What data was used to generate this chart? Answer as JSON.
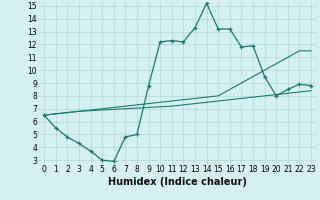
{
  "xlabel": "Humidex (Indice chaleur)",
  "x_values": [
    0,
    1,
    2,
    3,
    4,
    5,
    6,
    7,
    8,
    9,
    10,
    11,
    12,
    13,
    14,
    15,
    16,
    17,
    18,
    19,
    20,
    21,
    22,
    23
  ],
  "line1": [
    6.5,
    5.5,
    4.8,
    4.3,
    3.7,
    3.0,
    2.9,
    4.8,
    5.0,
    8.8,
    12.2,
    12.3,
    12.2,
    13.3,
    15.2,
    13.2,
    13.2,
    11.8,
    11.9,
    9.5,
    8.0,
    8.5,
    8.9,
    8.8
  ],
  "line2": [
    6.5,
    6.6,
    6.7,
    6.8,
    6.85,
    6.9,
    6.95,
    7.0,
    7.05,
    7.1,
    7.15,
    7.2,
    7.3,
    7.4,
    7.5,
    7.6,
    7.7,
    7.8,
    7.9,
    8.0,
    8.1,
    8.2,
    8.3,
    8.4
  ],
  "line3": [
    6.5,
    6.6,
    6.7,
    6.8,
    6.9,
    7.0,
    7.1,
    7.2,
    7.3,
    7.4,
    7.5,
    7.6,
    7.7,
    7.8,
    7.9,
    8.0,
    8.5,
    9.0,
    9.5,
    10.0,
    10.5,
    11.0,
    11.5,
    11.5
  ],
  "line_color": "#1a7a6e",
  "bg_color": "#d5f0f0",
  "grid_color": "#b0d8d8",
  "ylim": [
    3,
    15
  ],
  "xlim": [
    -0.5,
    23.5
  ],
  "yticks": [
    3,
    4,
    5,
    6,
    7,
    8,
    9,
    10,
    11,
    12,
    13,
    14,
    15
  ],
  "xticks": [
    0,
    1,
    2,
    3,
    4,
    5,
    6,
    7,
    8,
    9,
    10,
    11,
    12,
    13,
    14,
    15,
    16,
    17,
    18,
    19,
    20,
    21,
    22,
    23
  ],
  "tick_fontsize": 5.5,
  "label_fontsize": 7
}
